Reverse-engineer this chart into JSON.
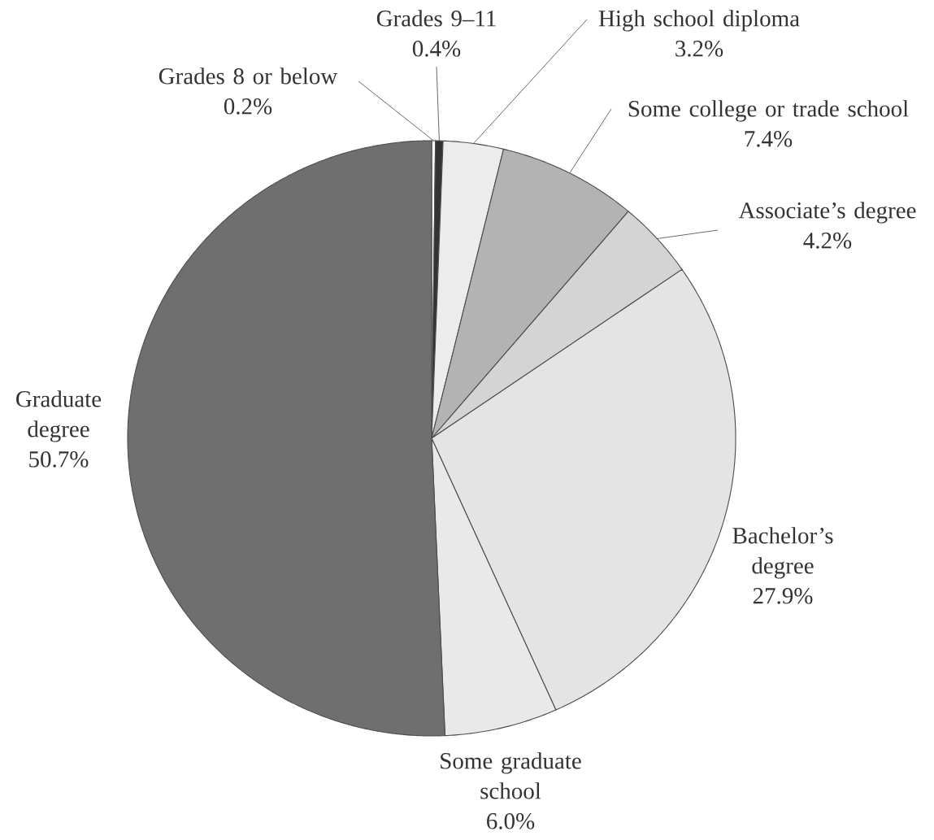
{
  "chart_data": {
    "type": "pie",
    "categories": [
      "Grades 8 or below",
      "Grades 9–11",
      "High school diploma",
      "Some college or trade school",
      "Associate’s degree",
      "Bachelor’s degree",
      "Some graduate school",
      "Graduate degree"
    ],
    "values": [
      0.2,
      0.4,
      3.2,
      7.4,
      4.2,
      27.9,
      6.0,
      50.7
    ],
    "value_labels": [
      "0.2%",
      "0.4%",
      "3.2%",
      "7.4%",
      "4.2%",
      "27.9%",
      "6.0%",
      "50.7%"
    ],
    "colors": [
      "#ffffff",
      "#333333",
      "#ececec",
      "#b3b3b3",
      "#d4d4d4",
      "#e4e4e4",
      "#e9e9e9",
      "#6f6f6f"
    ]
  }
}
